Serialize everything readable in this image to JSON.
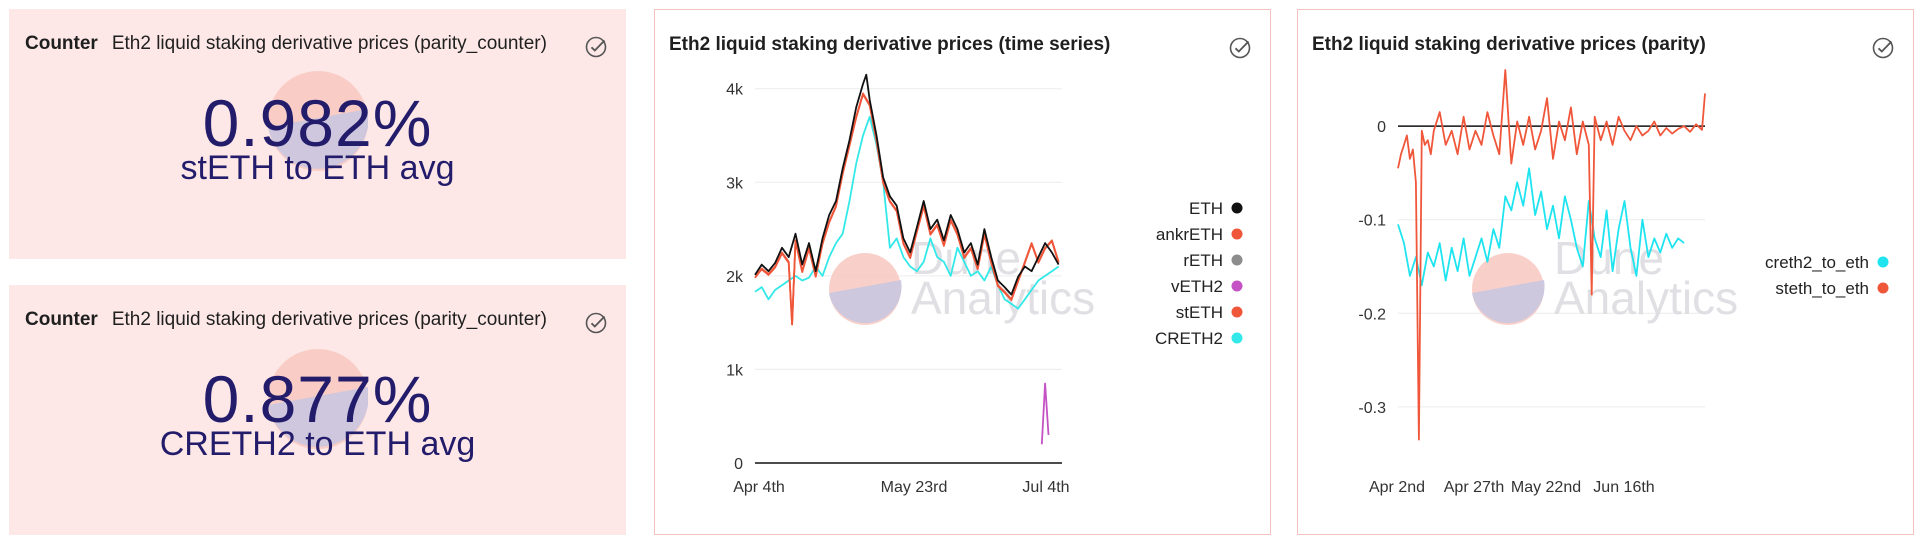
{
  "counters": [
    {
      "kind": "Counter",
      "title": "Eth2 liquid staking derivative prices (parity_counter)",
      "value": "0.982%",
      "subtitle": "stETH to ETH avg"
    },
    {
      "kind": "Counter",
      "title": "Eth2 liquid staking derivative prices (parity_counter)",
      "value": "0.877%",
      "subtitle": "CRETH2 to ETH avg"
    }
  ],
  "watermark": {
    "line1": "Dune",
    "line2": "Analytics"
  },
  "colors": {
    "ETH": "#111111",
    "ankrETH": "#f0573a",
    "rETH": "#8c8c8c",
    "vETH2": "#c452c4",
    "stETH": "#f0573a",
    "CRETH2": "#33e8e8",
    "creth2_to_eth": "#1fe4f0",
    "steth_to_eth": "#f0573a"
  },
  "chart_data": [
    {
      "type": "line",
      "title": "Eth2 liquid staking derivative prices (time series)",
      "x_tick_labels": [
        "Apr 4th",
        "May 23rd",
        "Jul 4th"
      ],
      "y_tick_labels": [
        "0",
        "1k",
        "2k",
        "3k",
        "4k"
      ],
      "y_ticks": [
        0,
        1000,
        2000,
        3000,
        4000
      ],
      "ylim": [
        0,
        4200
      ],
      "x_range_days": [
        0,
        91
      ],
      "legend_position": "right",
      "legend": [
        "ETH",
        "ankrETH",
        "rETH",
        "vETH2",
        "stETH",
        "CRETH2"
      ],
      "series": [
        {
          "name": "ETH",
          "x": [
            0,
            2,
            4,
            6,
            8,
            10,
            12,
            14,
            16,
            18,
            20,
            22,
            24,
            26,
            28,
            30,
            32,
            33,
            34,
            36,
            38,
            40,
            42,
            44,
            46,
            48,
            50,
            52,
            54,
            56,
            58,
            60,
            62,
            64,
            66,
            68,
            70,
            72,
            74,
            76,
            78,
            80,
            82,
            84,
            86,
            88,
            90
          ],
          "y": [
            2010,
            2120,
            2050,
            2140,
            2300,
            2200,
            2450,
            2120,
            2350,
            2050,
            2400,
            2650,
            2800,
            3150,
            3450,
            3800,
            4050,
            4150,
            3880,
            3500,
            3050,
            2850,
            2750,
            2400,
            2250,
            2520,
            2800,
            2500,
            2600,
            2380,
            2650,
            2500,
            2250,
            2350,
            2120,
            2500,
            2200,
            1950,
            1880,
            1800,
            1990,
            2100,
            2050,
            2200,
            2350,
            2250,
            2120
          ]
        },
        {
          "name": "ankrETH",
          "x": [
            0,
            2,
            4,
            6,
            8,
            10,
            11,
            12,
            14,
            16,
            18,
            20,
            22,
            24,
            26,
            28,
            30,
            32,
            34,
            36,
            38,
            40,
            42,
            44,
            46,
            48,
            50,
            52,
            54,
            56,
            58,
            60,
            62,
            64,
            66,
            68,
            70,
            72,
            74,
            76,
            78,
            80,
            82,
            84,
            86,
            88,
            90
          ],
          "y": [
            1980,
            2080,
            2020,
            2100,
            2250,
            2150,
            1480,
            2380,
            2050,
            2300,
            2000,
            2350,
            2580,
            2750,
            3100,
            3400,
            3700,
            3950,
            3830,
            3450,
            3000,
            2800,
            2700,
            2350,
            2200,
            2480,
            2750,
            2450,
            2550,
            2330,
            2600,
            2450,
            2200,
            2300,
            2080,
            2450,
            2150,
            1900,
            1830,
            1750,
            1950,
            2150,
            2350,
            2150,
            2300,
            2380,
            2150
          ]
        },
        {
          "name": "rETH",
          "x": [],
          "y": []
        },
        {
          "name": "vETH2",
          "x": [
            85,
            86,
            87
          ],
          "y": [
            200,
            850,
            300
          ]
        },
        {
          "name": "stETH",
          "x": [
            0,
            2,
            4,
            6,
            8,
            10,
            11,
            12,
            14,
            16,
            18,
            20,
            22,
            24,
            26,
            28,
            30,
            32,
            34,
            36,
            38,
            40,
            42,
            44,
            46,
            48,
            50,
            52,
            54,
            56,
            58,
            60,
            62,
            64,
            66,
            68,
            70,
            72,
            74,
            76,
            78,
            80,
            82,
            84,
            86,
            88,
            90
          ],
          "y": [
            1980,
            2070,
            2010,
            2090,
            2240,
            2140,
            1480,
            2370,
            2040,
            2290,
            1990,
            2340,
            2570,
            2740,
            3090,
            3390,
            3690,
            3940,
            3820,
            3440,
            2990,
            2790,
            2690,
            2340,
            2190,
            2470,
            2740,
            2440,
            2540,
            2320,
            2590,
            2440,
            2190,
            2290,
            2070,
            2440,
            2140,
            1890,
            1820,
            1740,
            1940,
            2140,
            2340,
            2140,
            2290,
            2370,
            2140
          ]
        },
        {
          "name": "CRETH2",
          "x": [
            0,
            2,
            4,
            6,
            8,
            10,
            12,
            14,
            16,
            18,
            20,
            22,
            24,
            26,
            28,
            30,
            32,
            34,
            36,
            38,
            40,
            42,
            44,
            46,
            48,
            50,
            52,
            54,
            56,
            58,
            60,
            62,
            64,
            66,
            68,
            70,
            72,
            74,
            76,
            78,
            80,
            82,
            84,
            86,
            88,
            90
          ],
          "y": [
            1830,
            1880,
            1750,
            1850,
            1900,
            1950,
            2000,
            1950,
            1980,
            2100,
            2000,
            2200,
            2350,
            2450,
            2800,
            3200,
            3500,
            3700,
            3400,
            3000,
            2300,
            2400,
            2200,
            2100,
            2050,
            2150,
            2400,
            2200,
            2150,
            2000,
            2300,
            2150,
            2000,
            2050,
            1950,
            2100,
            1900,
            1750,
            1700,
            1650,
            1750,
            1850,
            1950,
            2000,
            2050,
            2100
          ]
        }
      ]
    },
    {
      "type": "line",
      "title": "Eth2 liquid staking derivative prices (parity)",
      "x_tick_labels": [
        "Apr 2nd",
        "Apr 27th",
        "May 22nd",
        "Jun 16th"
      ],
      "y_tick_labels": [
        "0",
        "-0.1",
        "-0.2",
        "-0.3"
      ],
      "y_ticks": [
        0,
        -0.1,
        -0.2,
        -0.3
      ],
      "ylim": [
        -0.36,
        0.06
      ],
      "x_range_days": [
        0,
        103
      ],
      "legend_position": "right",
      "legend": [
        "creth2_to_eth",
        "steth_to_eth"
      ],
      "series": [
        {
          "name": "creth2_to_eth",
          "x": [
            0,
            2,
            4,
            6,
            8,
            10,
            12,
            14,
            16,
            18,
            20,
            22,
            24,
            26,
            28,
            30,
            32,
            34,
            36,
            38,
            40,
            42,
            44,
            46,
            48,
            50,
            52,
            54,
            56,
            58,
            60,
            62,
            64,
            66,
            68,
            70,
            72,
            74,
            76,
            78,
            80,
            82,
            84,
            86,
            88,
            90,
            92,
            94,
            96
          ],
          "y": [
            -0.105,
            -0.125,
            -0.16,
            -0.14,
            -0.17,
            -0.135,
            -0.15,
            -0.125,
            -0.165,
            -0.13,
            -0.155,
            -0.12,
            -0.16,
            -0.14,
            -0.12,
            -0.145,
            -0.11,
            -0.13,
            -0.075,
            -0.09,
            -0.06,
            -0.085,
            -0.045,
            -0.095,
            -0.07,
            -0.11,
            -0.085,
            -0.12,
            -0.075,
            -0.1,
            -0.13,
            -0.15,
            -0.08,
            -0.12,
            -0.14,
            -0.09,
            -0.155,
            -0.11,
            -0.08,
            -0.13,
            -0.16,
            -0.1,
            -0.14,
            -0.12,
            -0.135,
            -0.115,
            -0.13,
            -0.12,
            -0.125
          ]
        },
        {
          "name": "steth_to_eth",
          "x": [
            0,
            1,
            2,
            3,
            4,
            5,
            6,
            7,
            8,
            9,
            10,
            11,
            12,
            14,
            16,
            18,
            20,
            22,
            24,
            26,
            28,
            30,
            32,
            34,
            36,
            38,
            40,
            42,
            44,
            46,
            48,
            50,
            52,
            54,
            56,
            58,
            60,
            62,
            64,
            65,
            66,
            68,
            70,
            72,
            74,
            76,
            78,
            80,
            82,
            84,
            86,
            88,
            90,
            92,
            94,
            96,
            98,
            100,
            102,
            103
          ],
          "y": [
            -0.045,
            -0.03,
            -0.02,
            -0.01,
            -0.035,
            -0.025,
            -0.06,
            -0.335,
            -0.005,
            -0.02,
            -0.015,
            -0.03,
            -0.005,
            0.015,
            -0.02,
            -0.005,
            -0.03,
            0.01,
            -0.025,
            -0.005,
            -0.02,
            0.015,
            -0.01,
            -0.03,
            0.06,
            -0.04,
            0.005,
            -0.02,
            0.01,
            -0.025,
            -0.005,
            0.03,
            -0.035,
            0.005,
            -0.015,
            0.02,
            -0.03,
            0.005,
            -0.02,
            -0.18,
            0.01,
            -0.015,
            0.005,
            -0.02,
            0.01,
            -0.005,
            -0.015,
            0.0,
            -0.01,
            -0.005,
            0.005,
            -0.01,
            -0.002,
            -0.008,
            -0.003,
            0.0,
            -0.006,
            0.002,
            -0.004,
            0.035
          ]
        }
      ]
    }
  ]
}
